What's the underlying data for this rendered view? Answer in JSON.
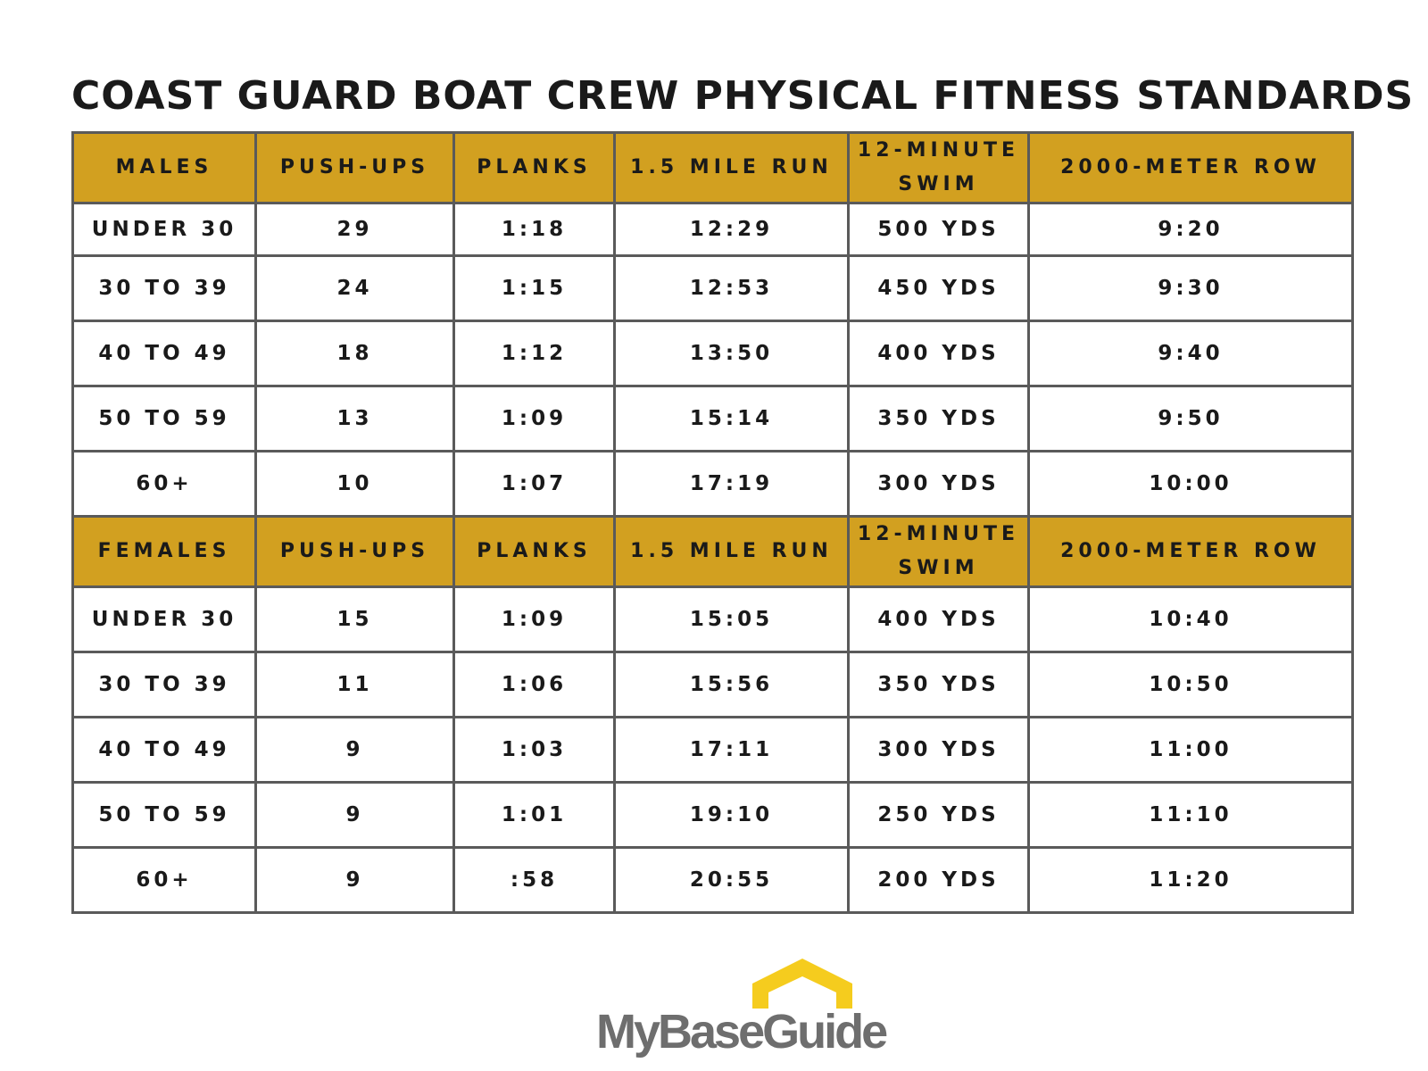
{
  "title": "COAST GUARD BOAT CREW PHYSICAL FITNESS STANDARDS",
  "columns": [
    "PUSH-UPS",
    "PLANKS",
    "1.5 MILE RUN",
    "12-MINUTE SWIM",
    "2000-METER ROW"
  ],
  "males": {
    "label": "MALES",
    "rows": [
      [
        "UNDER 30",
        "29",
        "1:18",
        "12:29",
        "500 YDS",
        "9:20"
      ],
      [
        "30 TO 39",
        "24",
        "1:15",
        "12:53",
        "450 YDS",
        "9:30"
      ],
      [
        "40 TO 49",
        "18",
        "1:12",
        "13:50",
        "400 YDS",
        "9:40"
      ],
      [
        "50 TO 59",
        "13",
        "1:09",
        "15:14",
        "350 YDS",
        "9:50"
      ],
      [
        "60+",
        "10",
        "1:07",
        "17:19",
        "300 YDS",
        "10:00"
      ]
    ]
  },
  "females": {
    "label": "FEMALES",
    "rows": [
      [
        "UNDER 30",
        "15",
        "1:09",
        "15:05",
        "400 YDS",
        "10:40"
      ],
      [
        "30 TO 39",
        "11",
        "1:06",
        "15:56",
        "350 YDS",
        "10:50"
      ],
      [
        "40 TO 49",
        "9",
        "1:03",
        "17:11",
        "300 YDS",
        "11:00"
      ],
      [
        "50 TO 59",
        "9",
        "1:01",
        "19:10",
        "250 YDS",
        "11:10"
      ],
      [
        "60+",
        "9",
        ":58",
        "20:55",
        "200 YDS",
        "11:20"
      ]
    ]
  },
  "logo": {
    "text": "MyBaseGuide",
    "icon": "house-roof-stars-icon",
    "accent_color": "#f5cc1e",
    "text_color": "#6e6e6e"
  },
  "colors": {
    "header_bg": "#d2a020",
    "border": "#5a5a5a",
    "text": "#1a1a1a"
  }
}
